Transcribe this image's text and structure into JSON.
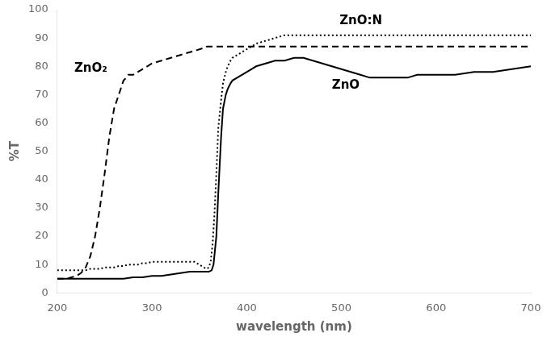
{
  "chart_data": {
    "type": "line",
    "title": "",
    "xlabel": "wavelength (nm)",
    "ylabel": "%T",
    "xlim": [
      200,
      700
    ],
    "ylim": [
      0,
      100
    ],
    "xticks": [
      200,
      300,
      400,
      500,
      600,
      700
    ],
    "yticks": [
      0,
      10,
      20,
      30,
      40,
      50,
      60,
      70,
      80,
      90,
      100
    ],
    "grid": false,
    "series": [
      {
        "color": "#000000",
        "line_style": "solid",
        "x": [
          200,
          210,
          220,
          230,
          240,
          250,
          260,
          270,
          280,
          290,
          300,
          310,
          320,
          330,
          340,
          350,
          355,
          358,
          360,
          363,
          365,
          368,
          370,
          373,
          375,
          378,
          380,
          383,
          385,
          390,
          395,
          400,
          405,
          410,
          420,
          430,
          440,
          450,
          460,
          470,
          480,
          490,
          500,
          510,
          520,
          530,
          540,
          550,
          560,
          570,
          580,
          590,
          600,
          620,
          640,
          660,
          680,
          700
        ],
        "values": [
          5,
          5,
          5,
          5,
          5,
          5,
          5,
          5,
          5.5,
          5.5,
          6,
          6,
          6.5,
          7,
          7.5,
          7.5,
          7.5,
          7.5,
          7.5,
          8,
          10,
          20,
          35,
          55,
          65,
          70,
          72,
          74,
          75,
          76,
          77,
          78,
          79,
          80,
          81,
          82,
          82,
          83,
          83,
          82,
          81,
          80,
          79,
          78,
          77,
          76,
          76,
          76,
          76,
          76,
          77,
          77,
          77,
          77,
          78,
          78,
          79,
          80
        ]
      },
      {
        "color": "#000000",
        "line_style": "dashed",
        "x": [
          200,
          205,
          210,
          215,
          220,
          225,
          230,
          235,
          240,
          245,
          250,
          255,
          260,
          263,
          265,
          268,
          270,
          273,
          275,
          278,
          280,
          283,
          285,
          290,
          295,
          300,
          310,
          320,
          330,
          340,
          350,
          355,
          358,
          360,
          363,
          365,
          368,
          370,
          375,
          380,
          390,
          400,
          420,
          440,
          460,
          480,
          500,
          520,
          540,
          560,
          580,
          600,
          620,
          640,
          660,
          680,
          700
        ],
        "values": [
          5,
          5,
          5,
          5.5,
          6,
          7,
          9,
          13,
          20,
          30,
          42,
          55,
          65,
          68,
          70,
          73,
          75,
          76,
          77,
          77,
          77,
          77.5,
          78,
          79,
          80,
          81,
          82,
          83,
          84,
          85,
          86,
          86.5,
          87,
          87,
          87,
          87,
          87,
          87,
          87,
          87,
          87,
          87,
          87,
          87,
          87,
          87,
          87,
          87,
          87,
          87,
          87,
          87,
          87,
          87,
          87,
          87,
          87
        ]
      },
      {
        "color": "#000000",
        "line_style": "dotted",
        "x": [
          200,
          205,
          210,
          215,
          220,
          225,
          230,
          235,
          240,
          245,
          250,
          255,
          260,
          265,
          270,
          275,
          280,
          285,
          290,
          295,
          300,
          305,
          310,
          315,
          320,
          325,
          330,
          335,
          340,
          345,
          350,
          355,
          358,
          360,
          362,
          364,
          366,
          368,
          370,
          373,
          375,
          378,
          380,
          383,
          385,
          390,
          395,
          400,
          405,
          410,
          420,
          430,
          440,
          450,
          460,
          470,
          480,
          490,
          500,
          520,
          540,
          560,
          580,
          600,
          620,
          640,
          660,
          680,
          700
        ],
        "values": [
          8,
          8,
          8,
          8,
          8,
          8,
          8,
          8.5,
          8.5,
          8.5,
          9,
          9,
          9,
          9.5,
          9.5,
          10,
          10,
          10,
          10.5,
          10.5,
          11,
          11,
          11,
          11,
          11,
          11,
          11,
          11,
          11,
          11,
          10,
          9,
          8.5,
          9,
          11,
          17,
          28,
          42,
          58,
          68,
          74,
          78,
          80,
          82,
          83,
          84,
          85,
          86,
          87,
          88,
          89,
          90,
          91,
          91,
          91,
          91,
          91,
          91,
          91,
          91,
          91,
          91,
          91,
          91,
          91,
          91,
          91,
          91,
          91
        ]
      }
    ],
    "annotations": [
      {
        "text": "ZnO₂",
        "x": 218,
        "y": 78
      },
      {
        "text": "ZnO",
        "x": 490,
        "y": 72
      },
      {
        "text": "ZnO:N",
        "x": 498,
        "y": 95
      }
    ]
  }
}
